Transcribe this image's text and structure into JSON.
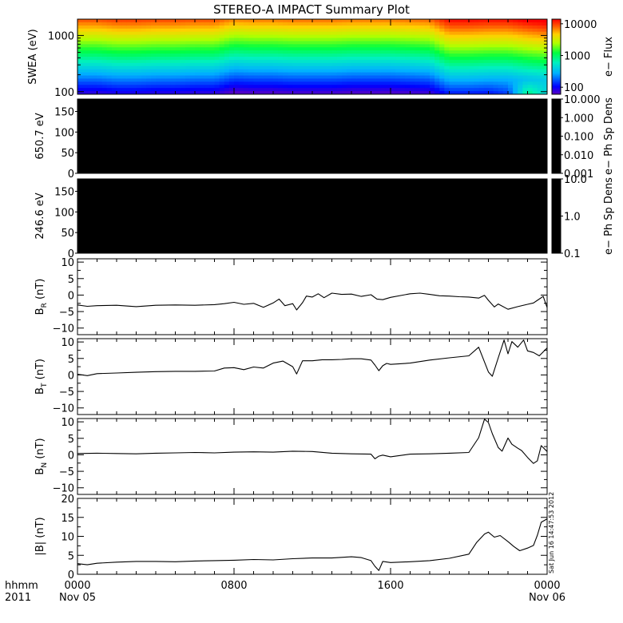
{
  "title": "STEREO-A IMPACT Summary Plot",
  "footer": {
    "row1_label": "hhmm",
    "row2_label": "2011",
    "timestamp": "Sat Jun 16 14:47:53 2012"
  },
  "colors": {
    "line": "#000000",
    "empty_panel": "#000000"
  },
  "chart_data": [
    {
      "type": "heatmap",
      "name": "swea",
      "ylabel": "SWEA (eV)",
      "yscale": "log",
      "ylim": [
        90,
        1950
      ],
      "yticks": [
        100,
        1000
      ],
      "ytick_labels": [
        "100",
        "1000"
      ],
      "colorbar": {
        "label": "e− Flux",
        "scale": "log",
        "range": [
          60,
          14000
        ],
        "ticks": [
          100,
          1000,
          10000
        ],
        "tick_labels": [
          "100",
          "1000",
          "10000"
        ]
      },
      "x": [
        0,
        1,
        2,
        3,
        4,
        5,
        6,
        7,
        8,
        9,
        10,
        11,
        12,
        13,
        14,
        15,
        16,
        17,
        18,
        19,
        20,
        21,
        22,
        23,
        24
      ],
      "ridge_shift": [
        0.0,
        0.0,
        0.02,
        0.02,
        0.01,
        0.01,
        0.0,
        0.0,
        -0.05,
        -0.04,
        -0.04,
        -0.03,
        -0.03,
        -0.03,
        -0.04,
        -0.04,
        -0.04,
        -0.03,
        -0.02,
        0.08,
        0.08,
        0.07,
        0.07,
        0.1,
        0.12
      ],
      "low_energy_boost": [
        0,
        0,
        0,
        0,
        0,
        0,
        0,
        0,
        0,
        0,
        0,
        0,
        0,
        0,
        0,
        0,
        0,
        0,
        0,
        0,
        0,
        0,
        0.05,
        0.35,
        0.2
      ]
    },
    {
      "type": "heatmap",
      "name": "pad_650",
      "ylabel": "650.7 eV",
      "ylim": [
        0,
        180
      ],
      "yticks": [
        0,
        50,
        100,
        150
      ],
      "ytick_labels": [
        "0",
        "50",
        "100",
        "150"
      ],
      "colorbar": {
        "label": "e− Ph Sp Dens",
        "scale": "log",
        "range": [
          0.001,
          10
        ],
        "ticks": [
          0.001,
          0.01,
          0.1,
          1,
          10
        ],
        "tick_labels": [
          "0.001",
          "0.010",
          "0.100",
          "1.000",
          "10.000"
        ]
      }
    },
    {
      "type": "heatmap",
      "name": "pad_246",
      "ylabel": "246.6 eV",
      "ylim": [
        0,
        180
      ],
      "yticks": [
        0,
        50,
        100,
        150
      ],
      "ytick_labels": [
        "0",
        "50",
        "100",
        "150"
      ],
      "colorbar": {
        "label": "e− Ph Sp Dens",
        "scale": "log",
        "range": [
          0.1,
          10
        ],
        "ticks": [
          0.1,
          1,
          10
        ],
        "tick_labels": [
          "0.1",
          "1.0",
          "10.0"
        ]
      }
    },
    {
      "type": "line",
      "name": "br",
      "ylabel_main": "B",
      "ylabel_sub": "R",
      "ylabel_tail": " (nT)",
      "ylim": [
        -12,
        11
      ],
      "yticks": [
        -10,
        -5,
        0,
        5,
        10
      ],
      "ytick_labels": [
        "−10",
        "−5",
        "0",
        "5",
        "10"
      ],
      "x": [
        0,
        0.5,
        1,
        2,
        3,
        4,
        5,
        6,
        7,
        7.5,
        8,
        8.5,
        9,
        9.5,
        10,
        10.3,
        10.6,
        11,
        11.2,
        11.5,
        11.7,
        12,
        12.3,
        12.6,
        13,
        13.5,
        14,
        14.5,
        15,
        15.3,
        15.6,
        16,
        17,
        17.5,
        18,
        18.5,
        19,
        19.5,
        20,
        20.5,
        20.8,
        21,
        21.3,
        21.5,
        22,
        22.5,
        23,
        23.3,
        23.5,
        23.8,
        24
      ],
      "y": [
        -3.0,
        -3.4,
        -3.2,
        -3.1,
        -3.5,
        -3.1,
        -3.0,
        -3.1,
        -2.9,
        -2.6,
        -2.2,
        -2.8,
        -2.5,
        -3.7,
        -2.4,
        -1.2,
        -3.2,
        -2.6,
        -4.5,
        -2.3,
        -0.3,
        -0.6,
        0.4,
        -0.8,
        0.6,
        0.2,
        0.3,
        -0.4,
        0.1,
        -1.2,
        -1.4,
        -0.7,
        0.4,
        0.6,
        0.2,
        -0.2,
        -0.3,
        -0.5,
        -0.6,
        -0.9,
        -0.1,
        -1.6,
        -3.6,
        -2.7,
        -4.3,
        -3.5,
        -2.8,
        -2.4,
        -1.6,
        -0.4,
        -3.8
      ]
    },
    {
      "type": "line",
      "name": "bt",
      "ylabel_main": "B",
      "ylabel_sub": "T",
      "ylabel_tail": " (nT)",
      "ylim": [
        -12,
        11
      ],
      "yticks": [
        -10,
        -5,
        0,
        5,
        10
      ],
      "ytick_labels": [
        "−10",
        "−5",
        "0",
        "5",
        "10"
      ],
      "x": [
        0,
        0.5,
        1,
        2,
        3,
        4,
        5,
        6,
        7,
        7.5,
        8,
        8.5,
        9,
        9.5,
        10,
        10.5,
        11,
        11.2,
        11.5,
        12,
        12.5,
        13,
        13.5,
        14,
        14.5,
        15,
        15.2,
        15.4,
        15.6,
        15.8,
        16,
        17,
        18,
        19,
        20,
        20.5,
        21,
        21.2,
        21.5,
        21.8,
        22,
        22.2,
        22.5,
        22.8,
        23,
        23.3,
        23.6,
        24
      ],
      "y": [
        0.2,
        -0.2,
        0.4,
        0.6,
        0.8,
        1.0,
        1.1,
        1.1,
        1.2,
        2.1,
        2.2,
        1.6,
        2.4,
        2.1,
        3.6,
        4.2,
        2.5,
        0.3,
        4.3,
        4.3,
        4.6,
        4.6,
        4.7,
        4.9,
        4.9,
        4.5,
        3.0,
        1.3,
        2.8,
        3.5,
        3.2,
        3.6,
        4.5,
        5.2,
        5.8,
        8.4,
        0.9,
        -0.4,
        5.2,
        10.6,
        6.4,
        10.1,
        8.4,
        10.6,
        7.3,
        6.8,
        5.8,
        8.2
      ]
    },
    {
      "type": "line",
      "name": "bn",
      "ylabel_main": "B",
      "ylabel_sub": "N",
      "ylabel_tail": " (nT)",
      "ylim": [
        -12,
        11
      ],
      "yticks": [
        -10,
        -5,
        0,
        5,
        10
      ],
      "ytick_labels": [
        "−10",
        "−5",
        "0",
        "5",
        "10"
      ],
      "x": [
        0,
        1,
        2,
        3,
        4,
        5,
        6,
        7,
        8,
        9,
        10,
        11,
        12,
        13,
        14,
        15,
        15.2,
        15.4,
        15.6,
        16,
        17,
        18,
        19,
        20,
        20.5,
        20.8,
        21,
        21.2,
        21.5,
        21.7,
        22,
        22.2,
        22.5,
        22.7,
        23,
        23.3,
        23.5,
        23.7,
        24
      ],
      "y": [
        0.4,
        0.5,
        0.4,
        0.3,
        0.5,
        0.6,
        0.7,
        0.6,
        0.8,
        0.9,
        0.8,
        1.1,
        1.0,
        0.5,
        0.3,
        0.2,
        -1.2,
        -0.4,
        -0.1,
        -0.6,
        0.2,
        0.3,
        0.5,
        0.7,
        5.2,
        10.8,
        9.8,
        6.4,
        2.2,
        1.1,
        5.1,
        3.2,
        2.0,
        1.3,
        -0.8,
        -2.6,
        -1.8,
        2.8,
        1.0
      ]
    },
    {
      "type": "line",
      "name": "bmag",
      "ylabel_main": "|B| (nT)",
      "ylim": [
        0,
        20
      ],
      "yticks": [
        0,
        5,
        10,
        15,
        20
      ],
      "ytick_labels": [
        "0",
        "5",
        "10",
        "15",
        "20"
      ],
      "x": [
        0,
        0.5,
        1,
        2,
        3,
        4,
        5,
        6,
        7,
        8,
        9,
        10,
        11,
        12,
        13,
        14,
        14.5,
        15,
        15.2,
        15.4,
        15.6,
        16,
        17,
        18,
        19,
        20,
        20.4,
        20.8,
        21,
        21.3,
        21.6,
        22,
        22.3,
        22.6,
        23,
        23.3,
        23.5,
        23.7,
        24
      ],
      "y": [
        2.8,
        2.5,
        2.9,
        3.2,
        3.4,
        3.4,
        3.3,
        3.5,
        3.6,
        3.7,
        3.9,
        3.8,
        4.1,
        4.3,
        4.3,
        4.6,
        4.4,
        3.6,
        2.1,
        1.0,
        3.4,
        3.1,
        3.3,
        3.6,
        4.2,
        5.3,
        8.4,
        10.6,
        11.1,
        9.8,
        10.2,
        8.6,
        7.3,
        6.2,
        6.9,
        7.6,
        10.3,
        13.7,
        14.6
      ]
    }
  ],
  "x_axis": {
    "range": [
      0,
      24
    ],
    "major_ticks": [
      0,
      8,
      16,
      24
    ],
    "minor_ticks_per_major": 8,
    "labels": [
      {
        "x": 0,
        "row1": "0000",
        "row2": "Nov 05"
      },
      {
        "x": 8,
        "row1": "0800",
        "row2": ""
      },
      {
        "x": 16,
        "row1": "1600",
        "row2": ""
      },
      {
        "x": 24,
        "row1": "0000",
        "row2": "Nov 06"
      }
    ]
  }
}
